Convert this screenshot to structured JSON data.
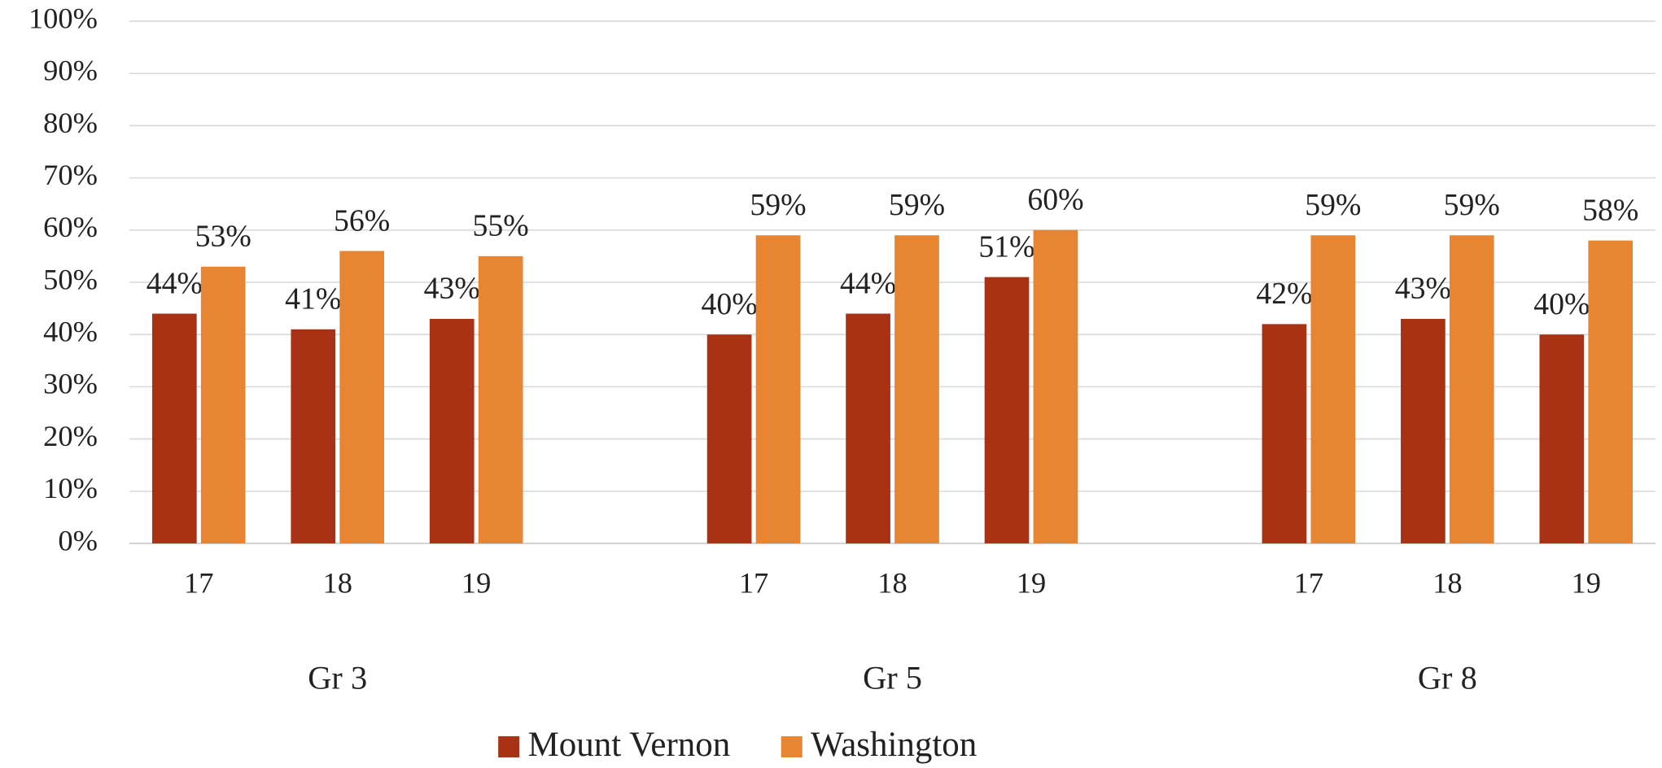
{
  "chart_data": {
    "type": "bar",
    "categories": [
      "17",
      "18",
      "19",
      null,
      "17",
      "18",
      "19",
      null,
      "17",
      "18",
      "19"
    ],
    "x_groups": [
      "Gr 3",
      "Gr 5",
      "Gr 8"
    ],
    "series": [
      {
        "name": "Mount Vernon",
        "color": "#a93214",
        "values": [
          44,
          41,
          43,
          null,
          40,
          44,
          51,
          null,
          42,
          43,
          40
        ],
        "value_labels": [
          "44%",
          "41%",
          "43%",
          null,
          "40%",
          "44%",
          "51%",
          null,
          "42%",
          "43%",
          "40%"
        ]
      },
      {
        "name": "Washington",
        "color": "#e88532",
        "values": [
          53,
          56,
          55,
          null,
          59,
          59,
          60,
          null,
          59,
          59,
          58
        ],
        "value_labels": [
          "53%",
          "56%",
          "55%",
          null,
          "59%",
          "59%",
          "60%",
          null,
          "59%",
          "59%",
          "58%"
        ]
      }
    ],
    "ylim": [
      0,
      100
    ],
    "yticks": [
      {
        "value": 0,
        "label": "0%"
      },
      {
        "value": 10,
        "label": "10%"
      },
      {
        "value": 20,
        "label": "20%"
      },
      {
        "value": 30,
        "label": "30%"
      },
      {
        "value": 40,
        "label": "40%"
      },
      {
        "value": 50,
        "label": "50%"
      },
      {
        "value": 60,
        "label": "60%"
      },
      {
        "value": 70,
        "label": "70%"
      },
      {
        "value": 80,
        "label": "80%"
      },
      {
        "value": 90,
        "label": "90%"
      },
      {
        "value": 100,
        "label": "100%"
      }
    ],
    "grid": true,
    "legend": "bottom"
  }
}
